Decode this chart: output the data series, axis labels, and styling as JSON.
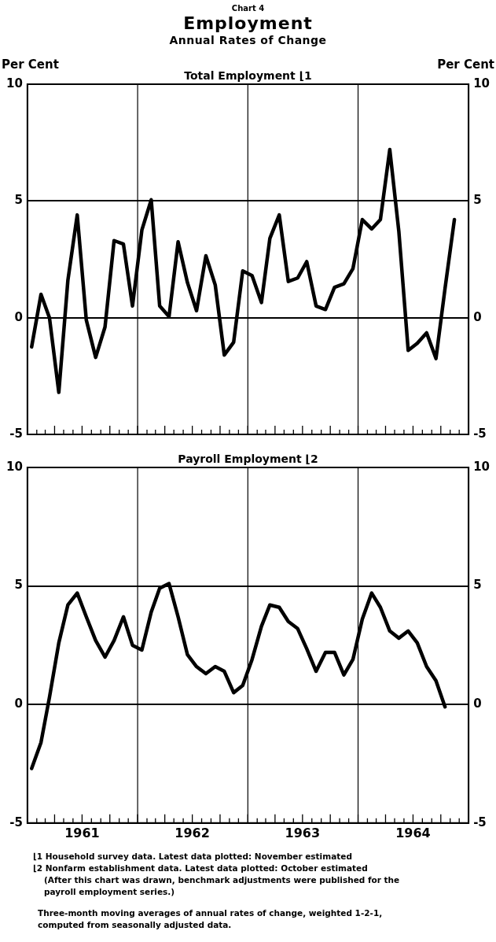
{
  "chart_data": [
    {
      "type": "line",
      "title": "Employment",
      "subtitle": "Annual Rates of Change",
      "annotations": [
        "Chart 4"
      ],
      "ylabel": "Per Cent",
      "y2label": "Per Cent",
      "x": [
        "1961-01-15",
        "1961-02-15",
        "1961-03-15",
        "1961-04-15",
        "1961-05-15",
        "1961-06-15",
        "1961-07-15",
        "1961-08-15",
        "1961-09-15",
        "1961-10-15",
        "1961-11-15",
        "1961-12-15",
        "1962-01-15",
        "1962-02-15",
        "1962-03-15",
        "1962-04-15",
        "1962-05-15",
        "1962-06-15",
        "1962-07-15",
        "1962-08-15",
        "1962-09-15",
        "1962-10-15",
        "1962-11-15",
        "1962-12-15",
        "1963-01-15",
        "1963-02-15",
        "1963-03-15",
        "1963-04-15",
        "1963-05-15",
        "1963-06-15",
        "1963-07-15",
        "1963-08-15",
        "1963-09-15",
        "1963-10-15",
        "1963-11-15",
        "1963-12-15",
        "1964-01-15",
        "1964-02-15",
        "1964-03-15",
        "1964-04-15",
        "1964-05-15",
        "1964-06-15",
        "1964-07-15",
        "1964-08-15",
        "1964-09-15",
        "1964-10-15",
        "1964-11-15"
      ],
      "series": [
        {
          "name": "Total Employment ⌊1",
          "color": "#000000",
          "values": [
            -1.25,
            1.0,
            0,
            -3.2,
            1.6,
            4.4,
            -0.1,
            -1.7,
            -0.4,
            3.3,
            3.15,
            0.5,
            3.75,
            5.05,
            0.5,
            0.05,
            3.25,
            1.5,
            0.3,
            2.65,
            1.4,
            -1.6,
            -1.05,
            2.0,
            1.8,
            0.65,
            3.4,
            4.4,
            1.55,
            1.7,
            2.4,
            0.5,
            0.35,
            1.3,
            1.45,
            2.1,
            4.2,
            3.8,
            4.2,
            7.2,
            3.7,
            -1.4,
            -1.1,
            -0.65,
            -1.75,
            1.25,
            4.2
          ]
        }
      ],
      "xlim": [
        "1961-01-01",
        "1965-01-01"
      ],
      "xticks": [
        {
          "value": "1961-02-01",
          "label": null
        },
        {
          "value": "1961-03-01",
          "label": null
        },
        {
          "value": "1961-04-01",
          "label": null
        },
        {
          "value": "1961-05-01",
          "label": null
        },
        {
          "value": "1961-06-01",
          "label": null
        },
        {
          "value": "1961-07-01",
          "label": null
        },
        {
          "value": "1961-08-01",
          "label": null
        },
        {
          "value": "1961-09-01",
          "label": null
        },
        {
          "value": "1961-10-01",
          "label": null
        },
        {
          "value": "1961-11-01",
          "label": null
        },
        {
          "value": "1961-12-01",
          "label": null
        },
        {
          "value": "1962-01-01",
          "label": null
        },
        {
          "value": "1962-02-01",
          "label": null
        },
        {
          "value": "1962-03-01",
          "label": null
        },
        {
          "value": "1962-04-01",
          "label": null
        },
        {
          "value": "1962-05-01",
          "label": null
        },
        {
          "value": "1962-06-01",
          "label": null
        },
        {
          "value": "1962-07-01",
          "label": null
        },
        {
          "value": "1962-08-01",
          "label": null
        },
        {
          "value": "1962-09-01",
          "label": null
        },
        {
          "value": "1962-10-01",
          "label": null
        },
        {
          "value": "1962-11-01",
          "label": null
        },
        {
          "value": "1962-12-01",
          "label": null
        },
        {
          "value": "1963-01-01",
          "label": null
        },
        {
          "value": "1963-02-01",
          "label": null
        },
        {
          "value": "1963-03-01",
          "label": null
        },
        {
          "value": "1963-04-01",
          "label": null
        },
        {
          "value": "1963-05-01",
          "label": null
        },
        {
          "value": "1963-06-01",
          "label": null
        },
        {
          "value": "1963-07-01",
          "label": null
        },
        {
          "value": "1963-08-01",
          "label": null
        },
        {
          "value": "1963-09-01",
          "label": null
        },
        {
          "value": "1963-10-01",
          "label": null
        },
        {
          "value": "1963-11-01",
          "label": null
        },
        {
          "value": "1963-12-01",
          "label": null
        },
        {
          "value": "1964-01-01",
          "label": null
        },
        {
          "value": "1964-02-01",
          "label": null
        },
        {
          "value": "1964-03-01",
          "label": null
        },
        {
          "value": "1964-04-01",
          "label": null
        },
        {
          "value": "1964-05-01",
          "label": null
        },
        {
          "value": "1964-06-01",
          "label": null
        },
        {
          "value": "1964-07-01",
          "label": null
        },
        {
          "value": "1964-08-01",
          "label": null
        },
        {
          "value": "1964-09-01",
          "label": null
        },
        {
          "value": "1964-10-01",
          "label": null
        },
        {
          "value": "1964-11-01",
          "label": null
        },
        {
          "value": "1964-12-01",
          "label": null
        }
      ],
      "ylim": [
        -5,
        10
      ],
      "yticks": [
        -5,
        0,
        5,
        10
      ],
      "y2lim": [
        -5,
        10
      ],
      "y2ticks": [
        -5,
        0,
        5,
        10
      ],
      "grid": "y",
      "tick_labels": "y",
      "ref_lines": [
        {
          "axis": "x",
          "value": "1962-01-01",
          "color": "#000000"
        },
        {
          "axis": "x",
          "value": "1963-01-01",
          "color": "#000000"
        },
        {
          "axis": "x",
          "value": "1964-01-01",
          "color": "#000000"
        }
      ]
    },
    {
      "type": "line",
      "annotations": [
        "⌊1 Household survey data. Latest data plotted: November estimated",
        "⌊2 Nonfarm establishment data. Latest data plotted: October estimated",
        "(After this chart was drawn, benchmark adjustments were published for the payroll employment series.)",
        "Three-month moving averages of annual rates of change, weighted 1-2-1, computed from seasonally adjusted data."
      ],
      "x": [
        "1961-01-15",
        "1961-02-15",
        "1961-03-15",
        "1961-04-15",
        "1961-05-15",
        "1961-06-15",
        "1961-07-15",
        "1961-08-15",
        "1961-09-15",
        "1961-10-15",
        "1961-11-15",
        "1961-12-15",
        "1962-01-15",
        "1962-02-15",
        "1962-03-15",
        "1962-04-15",
        "1962-05-15",
        "1962-06-15",
        "1962-07-15",
        "1962-08-15",
        "1962-09-15",
        "1962-10-15",
        "1962-11-15",
        "1962-12-15",
        "1963-01-15",
        "1963-02-15",
        "1963-03-15",
        "1963-04-15",
        "1963-05-15",
        "1963-06-15",
        "1963-07-15",
        "1963-08-15",
        "1963-09-15",
        "1963-10-15",
        "1963-11-15",
        "1963-12-15",
        "1964-01-15",
        "1964-02-15",
        "1964-03-15",
        "1964-04-15",
        "1964-05-15",
        "1964-06-15",
        "1964-07-15",
        "1964-08-15",
        "1964-09-15",
        "1964-10-15"
      ],
      "series": [
        {
          "name": "Payroll Employment ⌊2",
          "color": "#000000",
          "values": [
            -2.7,
            -1.6,
            0.3,
            2.6,
            4.2,
            4.7,
            3.7,
            2.7,
            2.0,
            2.7,
            3.7,
            2.5,
            2.3,
            3.9,
            4.9,
            5.1,
            3.7,
            2.1,
            1.6,
            1.3,
            1.6,
            1.4,
            0.5,
            0.8,
            1.9,
            3.3,
            4.2,
            4.1,
            3.5,
            3.2,
            2.35,
            1.4,
            2.2,
            2.2,
            1.25,
            1.9,
            3.6,
            4.7,
            4.1,
            3.1,
            2.8,
            3.1,
            2.6,
            1.6,
            1.0,
            -0.1
          ]
        }
      ],
      "xlim": [
        "1961-01-01",
        "1965-01-01"
      ],
      "xticks": [
        {
          "value": "1961-02-01",
          "label": null
        },
        {
          "value": "1961-03-01",
          "label": null
        },
        {
          "value": "1961-04-01",
          "label": null
        },
        {
          "value": "1961-05-01",
          "label": null
        },
        {
          "value": "1961-06-01",
          "label": null
        },
        {
          "value": "1961-07-01",
          "label": "1961"
        },
        {
          "value": "1961-08-01",
          "label": null
        },
        {
          "value": "1961-09-01",
          "label": null
        },
        {
          "value": "1961-10-01",
          "label": null
        },
        {
          "value": "1961-11-01",
          "label": null
        },
        {
          "value": "1961-12-01",
          "label": null
        },
        {
          "value": "1962-01-01",
          "label": null
        },
        {
          "value": "1962-02-01",
          "label": null
        },
        {
          "value": "1962-03-01",
          "label": null
        },
        {
          "value": "1962-04-01",
          "label": null
        },
        {
          "value": "1962-05-01",
          "label": null
        },
        {
          "value": "1962-06-01",
          "label": null
        },
        {
          "value": "1962-07-01",
          "label": "1962"
        },
        {
          "value": "1962-08-01",
          "label": null
        },
        {
          "value": "1962-09-01",
          "label": null
        },
        {
          "value": "1962-10-01",
          "label": null
        },
        {
          "value": "1962-11-01",
          "label": null
        },
        {
          "value": "1962-12-01",
          "label": null
        },
        {
          "value": "1963-01-01",
          "label": null
        },
        {
          "value": "1963-02-01",
          "label": null
        },
        {
          "value": "1963-03-01",
          "label": null
        },
        {
          "value": "1963-04-01",
          "label": null
        },
        {
          "value": "1963-05-01",
          "label": null
        },
        {
          "value": "1963-06-01",
          "label": null
        },
        {
          "value": "1963-07-01",
          "label": "1963"
        },
        {
          "value": "1963-08-01",
          "label": null
        },
        {
          "value": "1963-09-01",
          "label": null
        },
        {
          "value": "1963-10-01",
          "label": null
        },
        {
          "value": "1963-11-01",
          "label": null
        },
        {
          "value": "1963-12-01",
          "label": null
        },
        {
          "value": "1964-01-01",
          "label": null
        },
        {
          "value": "1964-02-01",
          "label": null
        },
        {
          "value": "1964-03-01",
          "label": null
        },
        {
          "value": "1964-04-01",
          "label": null
        },
        {
          "value": "1964-05-01",
          "label": null
        },
        {
          "value": "1964-06-01",
          "label": null
        },
        {
          "value": "1964-07-01",
          "label": "1964"
        },
        {
          "value": "1964-08-01",
          "label": null
        },
        {
          "value": "1964-09-01",
          "label": null
        },
        {
          "value": "1964-10-01",
          "label": null
        },
        {
          "value": "1964-11-01",
          "label": null
        },
        {
          "value": "1964-12-01",
          "label": null
        }
      ],
      "ylim": [
        -5,
        10
      ],
      "yticks": [
        -5,
        0,
        5,
        10
      ],
      "y2lim": [
        -5,
        10
      ],
      "y2ticks": [
        -5,
        0,
        5,
        10
      ],
      "grid": "y",
      "ref_lines": [
        {
          "axis": "x",
          "value": "1962-01-01",
          "color": "#000000"
        },
        {
          "axis": "x",
          "value": "1963-01-01",
          "color": "#000000"
        },
        {
          "axis": "x",
          "value": "1964-01-01",
          "color": "#000000"
        }
      ]
    }
  ]
}
